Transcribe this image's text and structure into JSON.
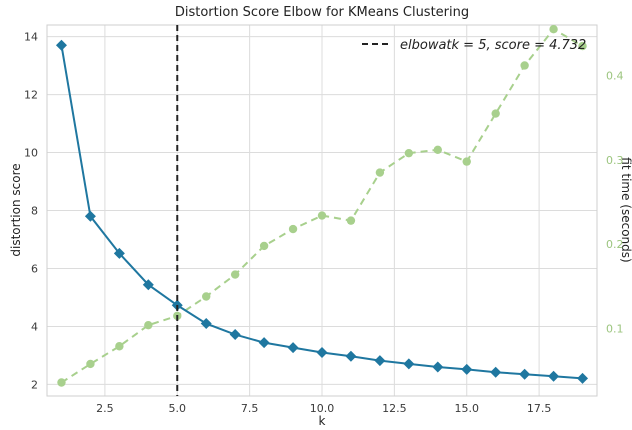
{
  "chart_data": {
    "type": "line",
    "title": "Distortion Score Elbow for KMeans Clustering",
    "xlabel": "k",
    "ylabel": "distortion score",
    "y2label": "fit time (seconds)",
    "xlim": [
      0.5,
      19.5
    ],
    "ylim": [
      1.6,
      14.4
    ],
    "y2lim": [
      0.02,
      0.46
    ],
    "xticks": [
      "2.5",
      "5.0",
      "7.5",
      "10.0",
      "12.5",
      "15.0",
      "17.5"
    ],
    "yticks": [
      "2",
      "4",
      "6",
      "8",
      "10",
      "12",
      "14"
    ],
    "y2ticks": [
      "0.1",
      "0.2",
      "0.3",
      "0.4"
    ],
    "grid": true,
    "legend_position": "top-right",
    "legend_label": "elbow at k = 5, score = 4.732",
    "legend_display": "elbowatk = 5, score = 4.732",
    "elbow": {
      "k": 5,
      "score": 4.732
    },
    "colors": {
      "distortion": "#1f77a0",
      "fit_time": "#a8d08d",
      "elbow": "#222222",
      "y2_axis": "#9cc57f",
      "grid": "#dcdcdc",
      "frame": "#cfcfcf"
    },
    "x": [
      1,
      2,
      3,
      4,
      5,
      6,
      7,
      8,
      9,
      10,
      11,
      12,
      13,
      14,
      15,
      16,
      17,
      18,
      19
    ],
    "series": [
      {
        "name": "distortion score",
        "axis": "left",
        "marker": "diamond",
        "values": [
          13.7,
          7.8,
          6.52,
          5.44,
          4.73,
          4.1,
          3.72,
          3.44,
          3.27,
          3.1,
          2.97,
          2.82,
          2.71,
          2.6,
          2.52,
          2.42,
          2.35,
          2.28,
          2.21
        ]
      },
      {
        "name": "fit time (seconds)",
        "axis": "right",
        "marker": "circle",
        "dashed": true,
        "values": [
          0.036,
          0.058,
          0.079,
          0.104,
          0.115,
          0.138,
          0.164,
          0.198,
          0.218,
          0.234,
          0.228,
          0.285,
          0.308,
          0.312,
          0.298,
          0.355,
          0.412,
          0.455,
          0.435
        ]
      }
    ]
  }
}
